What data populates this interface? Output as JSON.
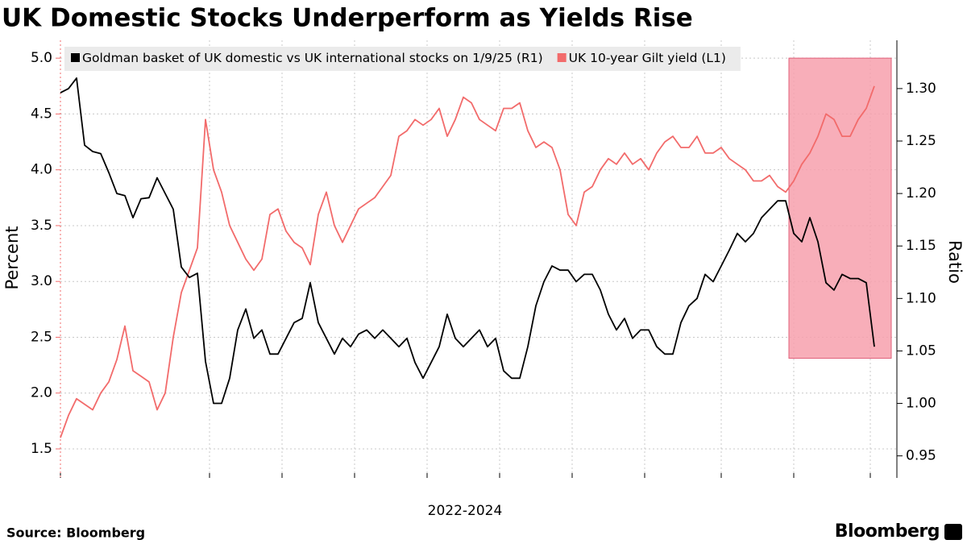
{
  "chart_data": {
    "type": "line",
    "title": "UK Domestic Stocks Underperform as Yields Rise",
    "xlabel": "2022-2024",
    "ylabel": "Percent",
    "y2label": "Ratio",
    "source": "Source: Bloomberg",
    "brand": "Bloomberg",
    "xlim": [
      0,
      103.8
    ],
    "xticks": [
      0,
      18.5,
      27.5,
      36.5,
      45.5,
      54.5,
      63.5,
      72.5,
      82,
      91,
      100.5
    ],
    "ylim": [
      1.24,
      5.16
    ],
    "yticks": [
      1.5,
      2.0,
      2.5,
      3.0,
      3.5,
      4.0,
      4.5,
      5.0
    ],
    "y2lim": [
      0.929,
      1.346
    ],
    "y2ticks": [
      0.95,
      1.0,
      1.05,
      1.1,
      1.15,
      1.2,
      1.25,
      1.3
    ],
    "grid": true,
    "legend": "top-left",
    "highlight": {
      "x": [
        90.4,
        103.1
      ],
      "y2": [
        1.043,
        1.329
      ],
      "color": "#f7a0ad"
    },
    "series": [
      {
        "name": "Goldman basket of UK domestic vs UK international stocks on 1/9/25 (R1)",
        "color": "#000000",
        "axis": "y2",
        "values": [
          1.296,
          1.3,
          1.31,
          1.246,
          1.24,
          1.238,
          1.22,
          1.2,
          1.198,
          1.177,
          1.195,
          1.196,
          1.215,
          1.2,
          1.185,
          1.13,
          1.12,
          1.124,
          1.04,
          1.0,
          1.0,
          1.024,
          1.07,
          1.09,
          1.062,
          1.07,
          1.047,
          1.047,
          1.062,
          1.077,
          1.081,
          1.115,
          1.077,
          1.062,
          1.047,
          1.062,
          1.054,
          1.066,
          1.07,
          1.062,
          1.07,
          1.062,
          1.054,
          1.062,
          1.039,
          1.024,
          1.039,
          1.054,
          1.085,
          1.062,
          1.054,
          1.062,
          1.07,
          1.054,
          1.062,
          1.031,
          1.024,
          1.024,
          1.054,
          1.093,
          1.116,
          1.131,
          1.127,
          1.127,
          1.116,
          1.123,
          1.123,
          1.108,
          1.085,
          1.07,
          1.081,
          1.062,
          1.07,
          1.07,
          1.054,
          1.047,
          1.047,
          1.077,
          1.093,
          1.1,
          1.123,
          1.116,
          1.131,
          1.146,
          1.162,
          1.154,
          1.162,
          1.177,
          1.185,
          1.193,
          1.193,
          1.162,
          1.154,
          1.177,
          1.154,
          1.115,
          1.108,
          1.123,
          1.119,
          1.119,
          1.115,
          1.054
        ]
      },
      {
        "name": "UK 10-year Gilt yield (L1)",
        "color": "#f26b6b",
        "values": [
          1.6,
          1.8,
          1.95,
          1.9,
          1.85,
          2.0,
          2.1,
          2.3,
          2.6,
          2.2,
          2.15,
          2.1,
          1.85,
          2.0,
          2.5,
          2.9,
          3.1,
          3.3,
          4.45,
          4.0,
          3.8,
          3.5,
          3.35,
          3.2,
          3.1,
          3.2,
          3.6,
          3.65,
          3.45,
          3.35,
          3.3,
          3.15,
          3.6,
          3.8,
          3.5,
          3.35,
          3.5,
          3.65,
          3.7,
          3.75,
          3.85,
          3.95,
          4.3,
          4.35,
          4.45,
          4.4,
          4.45,
          4.55,
          4.3,
          4.45,
          4.65,
          4.6,
          4.45,
          4.4,
          4.35,
          4.55,
          4.55,
          4.6,
          4.35,
          4.2,
          4.25,
          4.2,
          4.0,
          3.6,
          3.5,
          3.8,
          3.85,
          4.0,
          4.1,
          4.05,
          4.15,
          4.05,
          4.1,
          4.0,
          4.15,
          4.25,
          4.3,
          4.2,
          4.2,
          4.3,
          4.15,
          4.15,
          4.2,
          4.1,
          4.05,
          4.0,
          3.9,
          3.9,
          3.95,
          3.85,
          3.8,
          3.9,
          4.05,
          4.15,
          4.3,
          4.5,
          4.45,
          4.3,
          4.3,
          4.45,
          4.55,
          4.75
        ]
      }
    ]
  }
}
